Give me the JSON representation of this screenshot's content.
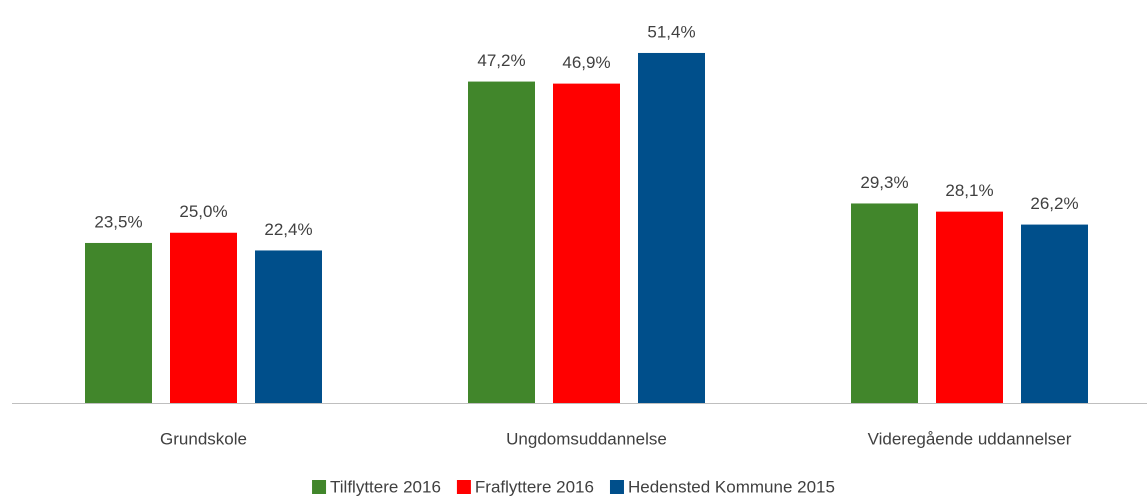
{
  "chart_data": {
    "type": "bar",
    "categories": [
      "Grundskole",
      "Ungdomsuddannelse",
      "Videregående uddannelser"
    ],
    "series": [
      {
        "name": "Tilflyttere 2016",
        "color": "#41862b",
        "values": [
          23.5,
          47.2,
          29.3
        ],
        "value_labels": [
          "23,5%",
          "47,2%",
          "29,3%"
        ]
      },
      {
        "name": "Fraflyttere 2016",
        "color": "#ff0000",
        "values": [
          25.0,
          46.9,
          28.1
        ],
        "value_labels": [
          "25,0%",
          "46,9%",
          "28,1%"
        ]
      },
      {
        "name": "Hedensted Kommune 2015",
        "color": "#004f8b",
        "values": [
          22.4,
          51.4,
          26.2
        ],
        "value_labels": [
          "22,4%",
          "51,4%",
          "26,2%"
        ]
      }
    ]
  }
}
